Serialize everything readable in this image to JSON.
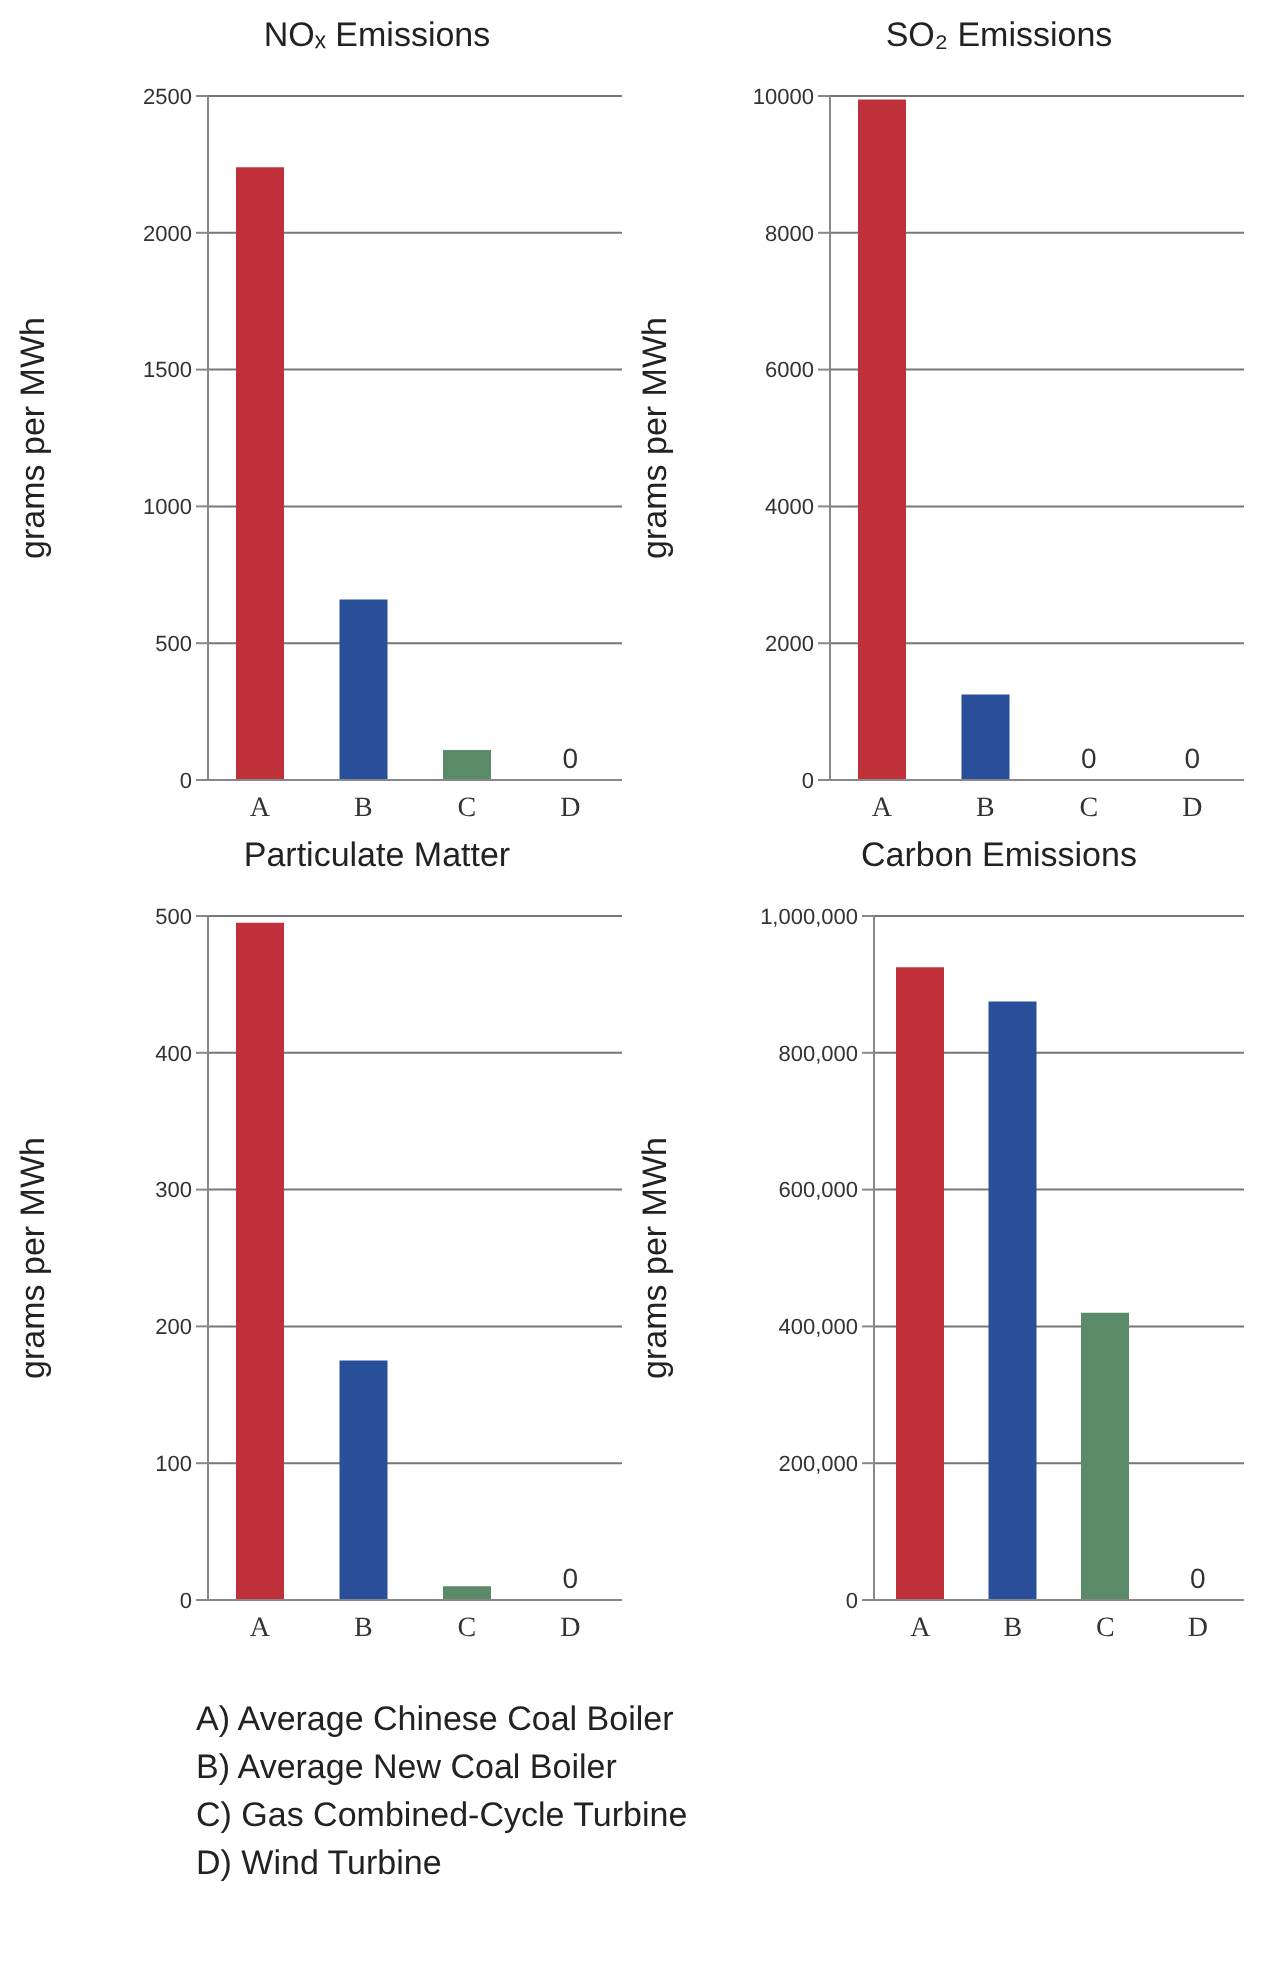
{
  "chart_data": [
    {
      "type": "bar",
      "title": "NOₓ Emissions",
      "ylabel": "grams per MWh",
      "categories": [
        "A",
        "B",
        "C",
        "D"
      ],
      "values": [
        2240,
        660,
        110,
        0
      ],
      "colors": [
        "#c0303a",
        "#2a4f9a",
        "#5a8a68",
        "#888888"
      ],
      "value_labels": [
        null,
        null,
        null,
        "0"
      ],
      "ylim": [
        0,
        2500
      ],
      "yticks": [
        0,
        500,
        1000,
        1500,
        2000,
        2500
      ],
      "grid": "y"
    },
    {
      "type": "bar",
      "title": "SO₂ Emissions",
      "ylabel": "grams per MWh",
      "categories": [
        "A",
        "B",
        "C",
        "D"
      ],
      "values": [
        9950,
        1250,
        0,
        0
      ],
      "colors": [
        "#c0303a",
        "#2a4f9a",
        "#5a8a68",
        "#888888"
      ],
      "value_labels": [
        null,
        null,
        "0",
        "0"
      ],
      "ylim": [
        0,
        10000
      ],
      "yticks": [
        0,
        2000,
        4000,
        6000,
        8000,
        10000
      ],
      "grid": "y"
    },
    {
      "type": "bar",
      "title": "Particulate Matter",
      "ylabel": "grams per MWh",
      "categories": [
        "A",
        "B",
        "C",
        "D"
      ],
      "values": [
        495,
        175,
        10,
        0
      ],
      "colors": [
        "#c0303a",
        "#2a4f9a",
        "#5a8a68",
        "#888888"
      ],
      "value_labels": [
        null,
        null,
        null,
        "0"
      ],
      "ylim": [
        0,
        500
      ],
      "yticks": [
        0,
        100,
        200,
        300,
        400,
        500
      ],
      "grid": "y"
    },
    {
      "type": "bar",
      "title": "Carbon Emissions",
      "ylabel": "grams per MWh",
      "categories": [
        "A",
        "B",
        "C",
        "D"
      ],
      "values": [
        925000,
        875000,
        420000,
        0
      ],
      "colors": [
        "#c0303a",
        "#2a4f9a",
        "#5a8a68",
        "#888888"
      ],
      "value_labels": [
        null,
        null,
        null,
        "0"
      ],
      "ylim": [
        0,
        1000000
      ],
      "yticks": [
        0,
        {
          "value": 200000,
          "label": "200,000"
        },
        {
          "value": 400000,
          "label": "400,000"
        },
        {
          "value": 600000,
          "label": "600,000"
        },
        {
          "value": 800000,
          "label": "800,000"
        },
        {
          "value": 1000000,
          "label": "1,000,000"
        }
      ],
      "grid": "y",
      "annotations": [
        "A) Average Chinese Coal Boiler",
        "B) Average New Coal Boiler",
        "C) Gas Combined-Cycle Turbine",
        "D) Wind Turbine"
      ]
    }
  ]
}
